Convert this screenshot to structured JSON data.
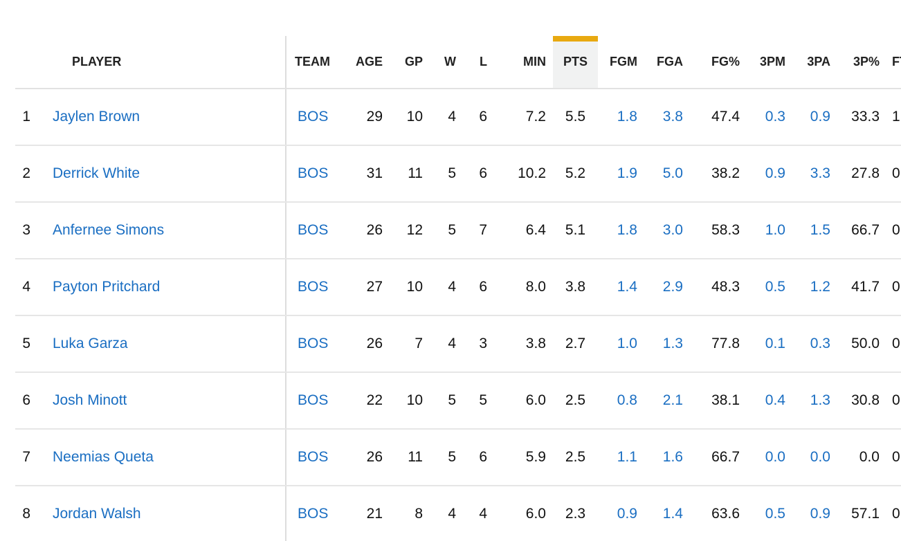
{
  "table": {
    "columns": [
      {
        "key": "player",
        "label": "PLAYER"
      },
      {
        "key": "team",
        "label": "TEAM"
      },
      {
        "key": "age",
        "label": "AGE"
      },
      {
        "key": "gp",
        "label": "GP"
      },
      {
        "key": "w",
        "label": "W"
      },
      {
        "key": "l",
        "label": "L"
      },
      {
        "key": "min",
        "label": "MIN"
      },
      {
        "key": "pts",
        "label": "PTS"
      },
      {
        "key": "fgm",
        "label": "FGM"
      },
      {
        "key": "fga",
        "label": "FGA"
      },
      {
        "key": "fgp",
        "label": "FG%"
      },
      {
        "key": "tpm",
        "label": "3PM"
      },
      {
        "key": "tpa",
        "label": "3PA"
      },
      {
        "key": "tpp",
        "label": "3P%"
      },
      {
        "key": "ftp",
        "label": "FT%"
      }
    ],
    "sorted_column": "PTS",
    "sort_indicator_color": "#e8a910",
    "link_color": "#1a6ec2",
    "rows": [
      {
        "rank": "1",
        "player": "Jaylen Brown",
        "team": "BOS",
        "age": "29",
        "gp": "10",
        "w": "4",
        "l": "6",
        "min": "7.2",
        "pts": "5.5",
        "fgm": "1.8",
        "fga": "3.8",
        "fgp": "47.4",
        "tpm": "0.3",
        "tpa": "0.9",
        "tpp": "33.3",
        "ftp": "1"
      },
      {
        "rank": "2",
        "player": "Derrick White",
        "team": "BOS",
        "age": "31",
        "gp": "11",
        "w": "5",
        "l": "6",
        "min": "10.2",
        "pts": "5.2",
        "fgm": "1.9",
        "fga": "5.0",
        "fgp": "38.2",
        "tpm": "0.9",
        "tpa": "3.3",
        "tpp": "27.8",
        "ftp": "0"
      },
      {
        "rank": "3",
        "player": "Anfernee Simons",
        "team": "BOS",
        "age": "26",
        "gp": "12",
        "w": "5",
        "l": "7",
        "min": "6.4",
        "pts": "5.1",
        "fgm": "1.8",
        "fga": "3.0",
        "fgp": "58.3",
        "tpm": "1.0",
        "tpa": "1.5",
        "tpp": "66.7",
        "ftp": "0"
      },
      {
        "rank": "4",
        "player": "Payton Pritchard",
        "team": "BOS",
        "age": "27",
        "gp": "10",
        "w": "4",
        "l": "6",
        "min": "8.0",
        "pts": "3.8",
        "fgm": "1.4",
        "fga": "2.9",
        "fgp": "48.3",
        "tpm": "0.5",
        "tpa": "1.2",
        "tpp": "41.7",
        "ftp": "0"
      },
      {
        "rank": "5",
        "player": "Luka Garza",
        "team": "BOS",
        "age": "26",
        "gp": "7",
        "w": "4",
        "l": "3",
        "min": "3.8",
        "pts": "2.7",
        "fgm": "1.0",
        "fga": "1.3",
        "fgp": "77.8",
        "tpm": "0.1",
        "tpa": "0.3",
        "tpp": "50.0",
        "ftp": "0"
      },
      {
        "rank": "6",
        "player": "Josh Minott",
        "team": "BOS",
        "age": "22",
        "gp": "10",
        "w": "5",
        "l": "5",
        "min": "6.0",
        "pts": "2.5",
        "fgm": "0.8",
        "fga": "2.1",
        "fgp": "38.1",
        "tpm": "0.4",
        "tpa": "1.3",
        "tpp": "30.8",
        "ftp": "0"
      },
      {
        "rank": "7",
        "player": "Neemias Queta",
        "team": "BOS",
        "age": "26",
        "gp": "11",
        "w": "5",
        "l": "6",
        "min": "5.9",
        "pts": "2.5",
        "fgm": "1.1",
        "fga": "1.6",
        "fgp": "66.7",
        "tpm": "0.0",
        "tpa": "0.0",
        "tpp": "0.0",
        "ftp": "0"
      },
      {
        "rank": "8",
        "player": "Jordan Walsh",
        "team": "BOS",
        "age": "21",
        "gp": "8",
        "w": "4",
        "l": "4",
        "min": "6.0",
        "pts": "2.3",
        "fgm": "0.9",
        "fga": "1.4",
        "fgp": "63.6",
        "tpm": "0.5",
        "tpa": "0.9",
        "tpp": "57.1",
        "ftp": "0"
      }
    ]
  }
}
